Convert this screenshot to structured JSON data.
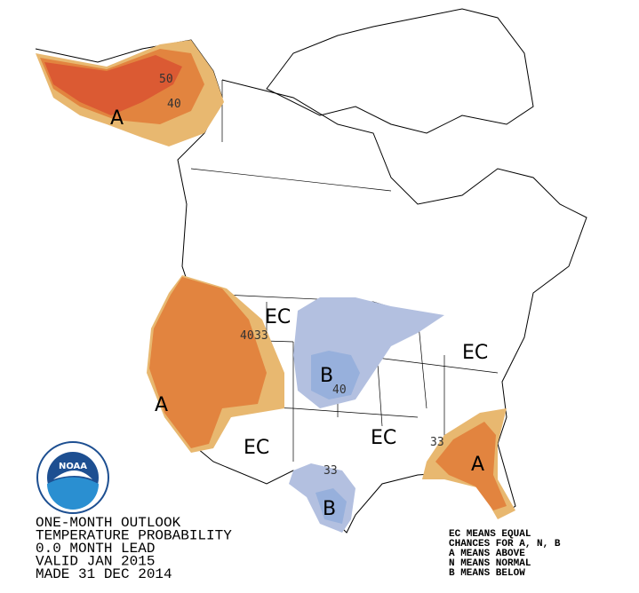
{
  "title_block": {
    "lines": [
      "ONE-MONTH OUTLOOK",
      "TEMPERATURE PROBABILITY",
      "0.0 MONTH LEAD",
      "VALID JAN 2015",
      "MADE 31 DEC 2014"
    ]
  },
  "legend": {
    "lines": [
      "EC MEANS EQUAL",
      "CHANCES FOR A, N, B",
      "A MEANS ABOVE",
      "N MEANS NORMAL",
      "B MEANS BELOW"
    ]
  },
  "map_labels": {
    "alaska_category": "A",
    "alaska_contour_high": "50",
    "alaska_contour_low": "40",
    "north_plains_category": "EC",
    "west_contour_high": "40",
    "west_contour_low": "33",
    "midwest_category": "B",
    "midwest_contour": "40",
    "northeast_category": "EC",
    "west_category": "A",
    "southwest_category": "EC",
    "south_category": "EC",
    "southeast_contour": "33",
    "southeast_category": "A",
    "texas_contour": "33",
    "texas_category": "B"
  },
  "logo": {
    "text": "NOAA"
  }
}
